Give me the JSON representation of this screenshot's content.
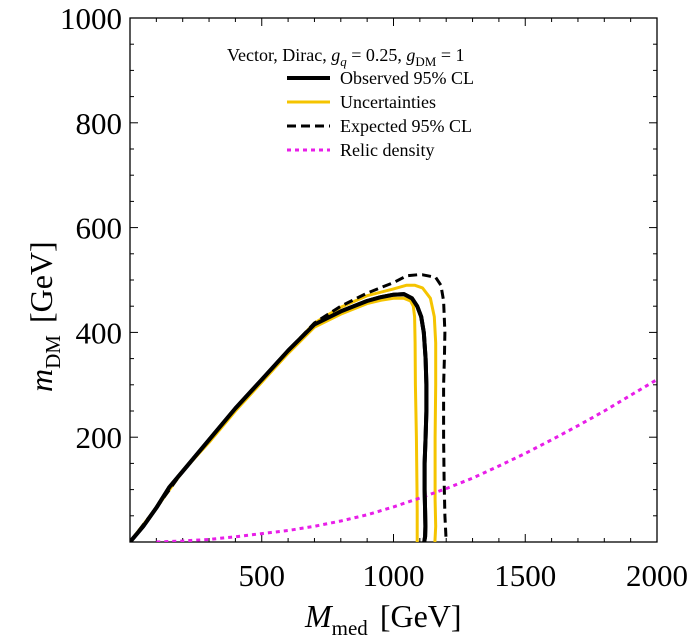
{
  "chart_data": {
    "type": "line",
    "xlabel": {
      "symbol": "M",
      "sub": "med",
      "unit": "[GeV]"
    },
    "ylabel": {
      "symbol": "m",
      "sub": "DM",
      "unit": "[GeV]"
    },
    "xlim": [
      0,
      2000
    ],
    "ylim": [
      0,
      1000
    ],
    "xticks": [
      500,
      1000,
      1500,
      2000
    ],
    "yticks": [
      200,
      400,
      600,
      800,
      1000
    ],
    "xtick_labels": [
      "500",
      "1000",
      "1500",
      "2000"
    ],
    "ytick_labels": [
      "200",
      "400",
      "600",
      "800",
      "1000"
    ],
    "grid": false,
    "legend_placement": "top-center",
    "legend_title": {
      "prefix": "Vector, Dirac, ",
      "g1": "g",
      "g1_sub": "q",
      "g1_val": " = 0.25, ",
      "g2": "g",
      "g2_sub": "DM",
      "g2_val": " = 1"
    },
    "series": [
      {
        "name": "Observed 95% CL",
        "color": "#000000",
        "style": "solid",
        "x": [
          0,
          50,
          100,
          150,
          200,
          300,
          400,
          500,
          600,
          700,
          800,
          900,
          950,
          1000,
          1040,
          1070,
          1090,
          1105,
          1115,
          1122,
          1125,
          1125,
          1122,
          1118,
          1118,
          1120,
          1121,
          1120,
          1118,
          1117
        ],
        "y": [
          0,
          30,
          65,
          105,
          135,
          195,
          255,
          310,
          365,
          415,
          440,
          460,
          467,
          472,
          473,
          465,
          450,
          430,
          400,
          350,
          300,
          250,
          200,
          150,
          100,
          60,
          30,
          10,
          5,
          0
        ]
      },
      {
        "name": "Uncertainties",
        "color": "#F5C400",
        "style": "solid",
        "x": [
          0,
          100,
          200,
          300,
          400,
          500,
          600,
          700,
          800,
          900,
          1000,
          1050,
          1080,
          1110,
          1140,
          1155,
          1160,
          1160,
          1158,
          1158,
          1158,
          1160,
          1157
        ],
        "y": [
          0,
          65,
          135,
          195,
          255,
          310,
          365,
          418,
          448,
          470,
          483,
          490,
          490,
          485,
          465,
          430,
          380,
          300,
          200,
          150,
          80,
          30,
          0
        ]
      },
      {
        "name": "Uncertainties",
        "color": "#F5C400",
        "style": "solid",
        "x": [
          0,
          100,
          200,
          300,
          400,
          500,
          600,
          700,
          800,
          900,
          950,
          1000,
          1040,
          1065,
          1075,
          1080,
          1082,
          1083,
          1085,
          1087,
          1088,
          1089,
          1090,
          1090,
          1090
        ],
        "y": [
          0,
          65,
          135,
          190,
          250,
          305,
          360,
          410,
          435,
          455,
          461,
          465,
          465,
          460,
          450,
          430,
          380,
          300,
          250,
          200,
          150,
          100,
          60,
          30,
          0
        ]
      },
      {
        "name": "Expected 95% CL",
        "color": "#000000",
        "style": "dashed",
        "x": [
          0,
          100,
          200,
          300,
          400,
          500,
          600,
          700,
          800,
          900,
          1000,
          1050,
          1090,
          1110,
          1130,
          1160,
          1180,
          1190,
          1195,
          1193,
          1190,
          1190,
          1190,
          1192,
          1195,
          1198,
          1200
        ],
        "y": [
          0,
          65,
          135,
          195,
          255,
          310,
          365,
          418,
          450,
          475,
          495,
          508,
          510,
          510,
          508,
          505,
          490,
          460,
          400,
          350,
          300,
          250,
          200,
          120,
          50,
          20,
          0
        ]
      },
      {
        "name": "Relic density",
        "color": "#E81EE8",
        "style": "dotted",
        "x": [
          100,
          200,
          300,
          400,
          500,
          600,
          700,
          800,
          900,
          1000,
          1100,
          1200,
          1300,
          1400,
          1500,
          1600,
          1700,
          1800,
          1900,
          2000
        ],
        "y": [
          0,
          2,
          5,
          10,
          16,
          22,
          30,
          40,
          52,
          67,
          84,
          102,
          122,
          145,
          169,
          195,
          222,
          250,
          280,
          310
        ]
      }
    ],
    "legend": [
      {
        "label": "Observed 95% CL",
        "color": "#000000",
        "style": "solid"
      },
      {
        "label": "Uncertainties",
        "color": "#F5C400",
        "style": "solid"
      },
      {
        "label": "Expected 95% CL",
        "color": "#000000",
        "style": "dashed"
      },
      {
        "label": "Relic density",
        "color": "#E81EE8",
        "style": "dotted"
      }
    ]
  }
}
